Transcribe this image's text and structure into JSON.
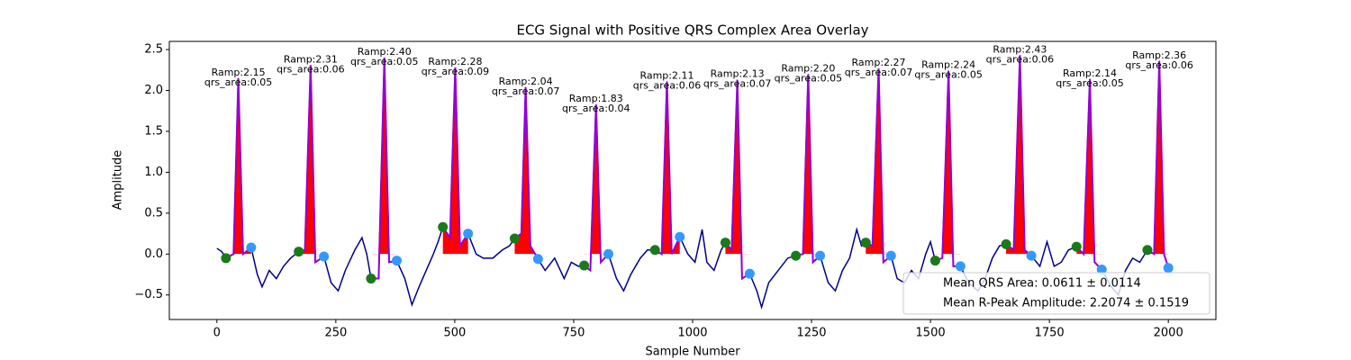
{
  "chart_data": {
    "type": "ecg",
    "title": "ECG Signal with Positive QRS Complex Area Overlay",
    "x_label": "Sample Number",
    "y_label": "Amplitude",
    "xlim": [
      -100,
      2100
    ],
    "ylim": [
      -0.8,
      2.6
    ],
    "xticks": [
      0,
      250,
      500,
      750,
      1000,
      1250,
      1500,
      1750,
      2000
    ],
    "yticks": [
      {
        "value": -0.5,
        "label": "−0.5"
      },
      {
        "value": 0,
        "label": "0.0"
      },
      0.5,
      {
        "value": 1,
        "label": "1.0"
      },
      1.5,
      {
        "value": 2,
        "label": "2.0"
      },
      2.5
    ],
    "legend_position": "lower right",
    "legend": [
      "Mean QRS Area: 0.0611 ± 0.0114",
      "Mean R-Peak Amplitude: 2.2074 ± 0.1519"
    ],
    "signal": {
      "color": "#00008b",
      "qrs_color": "#9400d3",
      "area_color": "#ff0000",
      "x": [
        0,
        10,
        19,
        35,
        45,
        55,
        72,
        85,
        95,
        110,
        125,
        140,
        155,
        172,
        185,
        197,
        207,
        225,
        240,
        255,
        270,
        290,
        305,
        315,
        324,
        340,
        352,
        362,
        378,
        395,
        410,
        425,
        440,
        455,
        465,
        475,
        490,
        501,
        511,
        528,
        545,
        560,
        580,
        600,
        615,
        626,
        640,
        649,
        659,
        675,
        690,
        710,
        730,
        745,
        760,
        772,
        785,
        797,
        807,
        823,
        840,
        855,
        870,
        890,
        905,
        921,
        935,
        946,
        956,
        973,
        990,
        1005,
        1020,
        1030,
        1045,
        1060,
        1069,
        1082,
        1094,
        1104,
        1120,
        1135,
        1145,
        1160,
        1180,
        1200,
        1217,
        1232,
        1243,
        1253,
        1268,
        1285,
        1300,
        1315,
        1330,
        1345,
        1355,
        1364,
        1378,
        1391,
        1401,
        1417,
        1430,
        1445,
        1460,
        1475,
        1490,
        1500,
        1510,
        1525,
        1538,
        1548,
        1563,
        1580,
        1600,
        1615,
        1630,
        1645,
        1659,
        1675,
        1688,
        1698,
        1712,
        1730,
        1745,
        1760,
        1775,
        1790,
        1807,
        1822,
        1835,
        1845,
        1860,
        1880,
        1895,
        1910,
        1925,
        1940,
        1956,
        1970,
        1981,
        1991,
        2000
      ],
      "values": [
        0.07,
        0.03,
        -0.05,
        0.0,
        2.15,
        0.0,
        0.08,
        -0.25,
        -0.4,
        -0.2,
        -0.3,
        -0.15,
        -0.05,
        0.03,
        0.05,
        2.31,
        -0.1,
        -0.03,
        -0.35,
        -0.45,
        -0.2,
        0.05,
        0.2,
        0.0,
        -0.3,
        -0.3,
        2.4,
        -0.1,
        -0.08,
        -0.3,
        -0.62,
        -0.4,
        -0.2,
        0.0,
        0.15,
        0.33,
        0.2,
        2.28,
        0.1,
        0.25,
        0.0,
        -0.05,
        -0.05,
        0.05,
        0.1,
        0.19,
        0.25,
        2.04,
        0.1,
        -0.06,
        -0.2,
        -0.05,
        -0.3,
        -0.1,
        -0.15,
        -0.14,
        -0.2,
        1.83,
        -0.1,
        0,
        -0.3,
        -0.45,
        -0.25,
        -0.05,
        0.05,
        0.05,
        0.0,
        2.11,
        0.0,
        0.21,
        0.0,
        -0.1,
        0.3,
        -0.1,
        -0.2,
        0.05,
        0.14,
        0.05,
        2.13,
        -0.3,
        -0.24,
        -0.45,
        -0.65,
        -0.35,
        -0.2,
        -0.05,
        -0.02,
        0.0,
        2.2,
        -0.1,
        -0.02,
        -0.35,
        -0.45,
        -0.2,
        -0.05,
        0.3,
        0.1,
        0.14,
        0.1,
        2.27,
        -0.1,
        -0.02,
        -0.3,
        -0.35,
        -0.2,
        -0.3,
        0.0,
        0.15,
        -0.08,
        -0.05,
        2.24,
        -0.15,
        -0.15,
        -0.35,
        -0.45,
        -0.3,
        -0.05,
        0.1,
        0.12,
        0.05,
        2.43,
        0.05,
        -0.02,
        -0.15,
        0.15,
        -0.15,
        -0.1,
        0.05,
        0.09,
        0.0,
        2.14,
        -0.1,
        -0.19,
        -0.4,
        -0.5,
        -0.2,
        -0.05,
        -0.1,
        0.05,
        0.0,
        2.36,
        0.0,
        -0.17
      ]
    },
    "r_peaks": {
      "x": [
        45,
        197,
        352,
        501,
        649,
        797,
        946,
        1094,
        1243,
        1391,
        1538,
        1688,
        1835,
        1981
      ],
      "values": [
        2.15,
        2.31,
        2.4,
        2.28,
        2.04,
        1.83,
        2.11,
        2.13,
        2.2,
        2.27,
        2.24,
        2.43,
        2.14,
        2.36
      ],
      "value_labels": [
        "Ramp:2.15",
        "Ramp:2.31",
        "Ramp:2.40",
        "Ramp:2.28",
        "Ramp:2.04",
        "Ramp:1.83",
        "Ramp:2.11",
        "Ramp:2.13",
        "Ramp:2.20",
        "Ramp:2.27",
        "Ramp:2.24",
        "Ramp:2.43",
        "Ramp:2.14",
        "Ramp:2.36"
      ]
    },
    "qrs_area": {
      "values": [
        0.05,
        0.06,
        0.05,
        0.09,
        0.07,
        0.04,
        0.06,
        0.07,
        0.05,
        0.07,
        0.05,
        0.06,
        0.05,
        0.06
      ],
      "value_labels": [
        "qrs_area:0.05",
        "qrs_area:0.06",
        "qrs_area:0.05",
        "qrs_area:0.09",
        "qrs_area:0.07",
        "qrs_area:0.04",
        "qrs_area:0.06",
        "qrs_area:0.07",
        "qrs_area:0.05",
        "qrs_area:0.07",
        "qrs_area:0.05",
        "qrs_area:0.06",
        "qrs_area:0.05",
        "qrs_area:0.06"
      ]
    },
    "q_points": {
      "color": "#1a7a1a",
      "x": [
        19,
        172,
        324,
        475,
        626,
        772,
        921,
        1069,
        1217,
        1364,
        1510,
        1659,
        1807,
        1956
      ],
      "values": [
        -0.05,
        0.03,
        -0.3,
        0.33,
        0.19,
        -0.14,
        0.05,
        0.14,
        -0.02,
        0.14,
        -0.08,
        0.12,
        0.09,
        0.05
      ]
    },
    "s_points": {
      "color": "#3399ff",
      "x": [
        72,
        225,
        378,
        528,
        675,
        823,
        973,
        1120,
        1268,
        1417,
        1563,
        1712,
        1860,
        2000
      ],
      "values": [
        0.08,
        -0.03,
        -0.08,
        0.25,
        -0.06,
        0,
        0.21,
        -0.24,
        -0.02,
        -0.02,
        -0.15,
        -0.02,
        -0.19,
        -0.17
      ]
    }
  }
}
